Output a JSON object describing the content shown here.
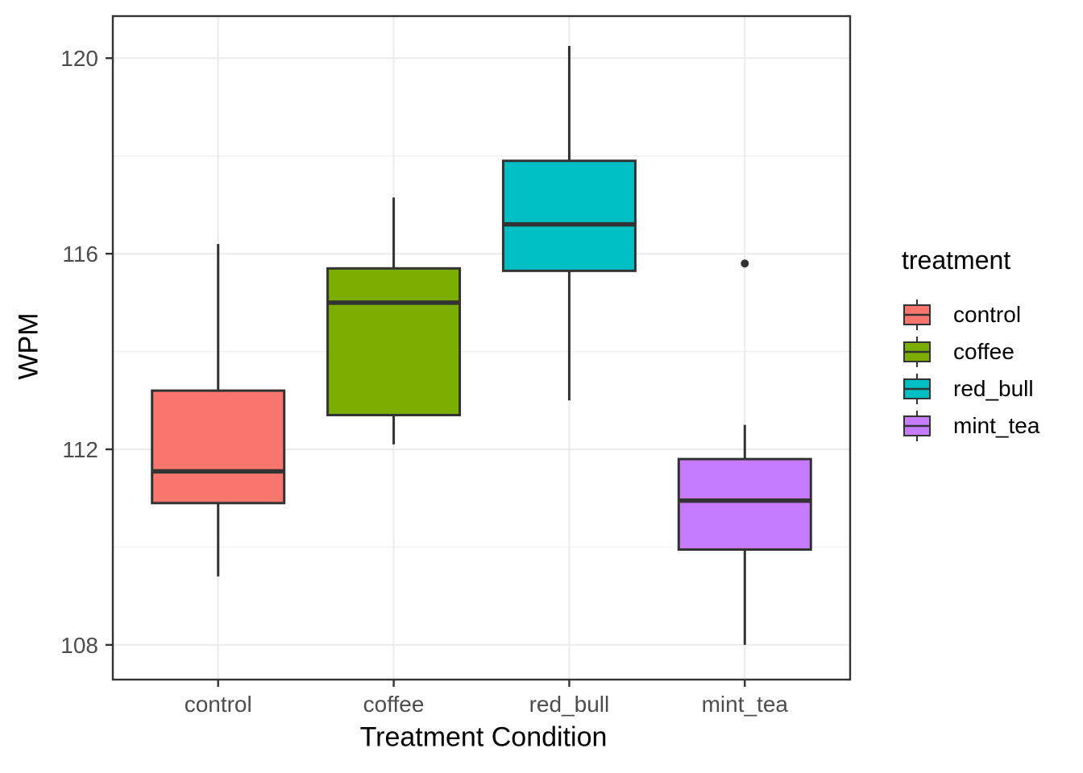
{
  "figure": {
    "x_axis_title": "Treatment Condition",
    "y_axis_title": "WPM"
  },
  "legend": {
    "title": "treatment",
    "position": "right",
    "items": [
      {
        "label": "control",
        "color": "#F8766D"
      },
      {
        "label": "coffee",
        "color": "#7CAE00"
      },
      {
        "label": "red_bull",
        "color": "#00BFC4"
      },
      {
        "label": "mint_tea",
        "color": "#C77CFF"
      }
    ]
  },
  "chart_data": {
    "type": "boxplot",
    "title": "",
    "xlabel": "Treatment Condition",
    "ylabel": "WPM",
    "categories": [
      "control",
      "coffee",
      "red_bull",
      "mint_tea"
    ],
    "y_ticks": [
      108,
      112,
      116,
      120
    ],
    "y_minor_gridlines": [
      110,
      114,
      118
    ],
    "ylim": [
      107.29,
      120.86
    ],
    "grid": true,
    "legend_position": "right",
    "series": [
      {
        "name": "control",
        "color": "#F8766D",
        "whisker_low": 109.4,
        "q1": 110.9,
        "median": 111.55,
        "q3": 113.2,
        "whisker_high": 116.2,
        "outliers": []
      },
      {
        "name": "coffee",
        "color": "#7CAE00",
        "whisker_low": 112.1,
        "q1": 112.7,
        "median": 115.0,
        "q3": 115.7,
        "whisker_high": 117.15,
        "outliers": []
      },
      {
        "name": "red_bull",
        "color": "#00BFC4",
        "whisker_low": 113.0,
        "q1": 115.65,
        "median": 116.6,
        "q3": 117.9,
        "whisker_high": 120.25,
        "outliers": []
      },
      {
        "name": "mint_tea",
        "color": "#C77CFF",
        "whisker_low": 108.0,
        "q1": 109.95,
        "median": 110.95,
        "q3": 111.8,
        "whisker_high": 112.5,
        "outliers": [
          115.8
        ]
      }
    ]
  },
  "style": {
    "box_outline": "#333333",
    "median_color": "#333333",
    "panel_border": "#333333",
    "grid_major": "#EBEBEB",
    "grid_minor": "#F0F0F0",
    "tick_mark_color": "#333333",
    "tick_label_color": "#4D4D4D",
    "outlier_color": "#333333",
    "panel_background": "#FFFFFF"
  }
}
